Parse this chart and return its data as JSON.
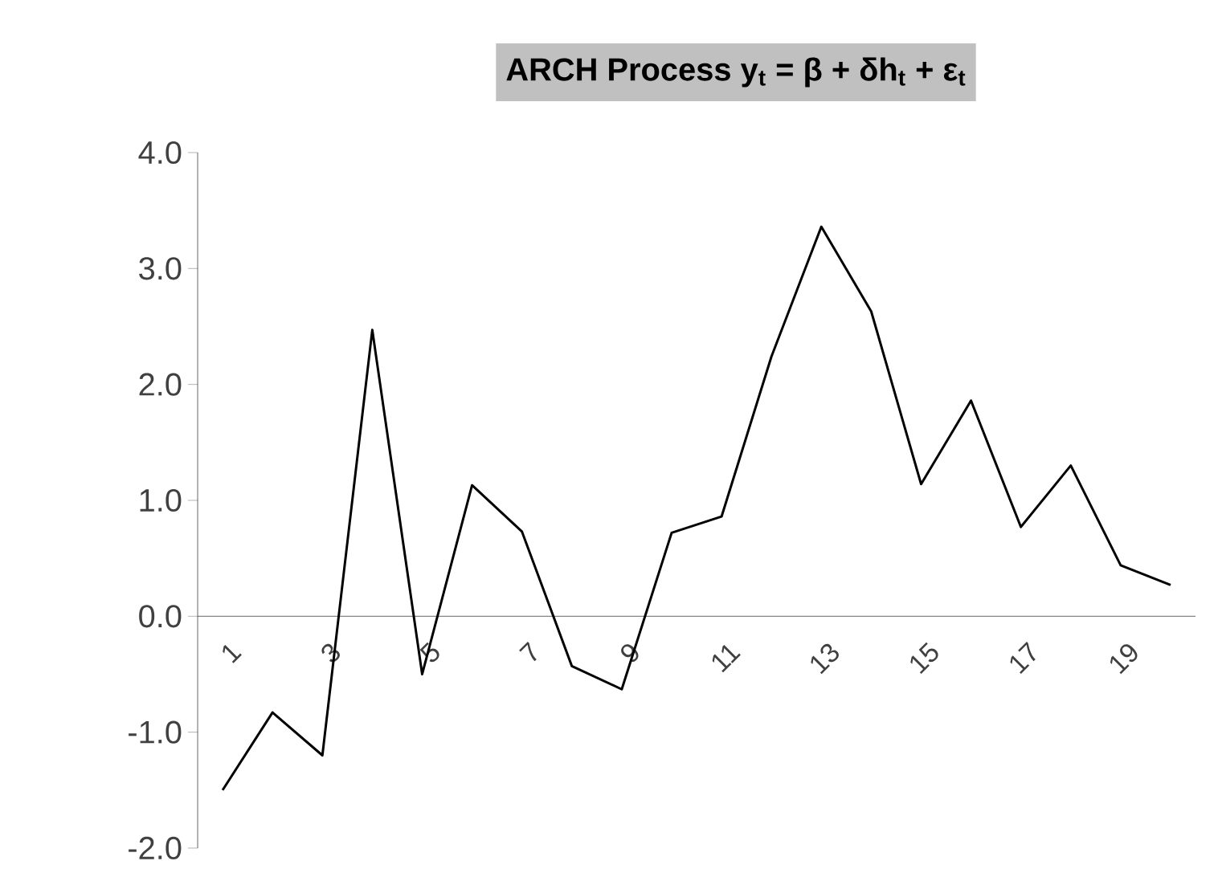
{
  "chart_data": {
    "type": "line",
    "title": "ARCH Process y$_{t}$ = β + δh$_{t}$ + ε$_{t}$",
    "categories": [
      "1",
      null,
      "3",
      null,
      "5",
      null,
      "7",
      null,
      "9",
      null,
      "11",
      null,
      "13",
      null,
      "15",
      null,
      "17",
      null,
      "19",
      null
    ],
    "values": [
      -1.5,
      -0.83,
      -1.2,
      2.47,
      -0.5,
      1.13,
      0.73,
      -0.43,
      -0.63,
      0.72,
      0.86,
      2.24,
      3.36,
      2.63,
      1.14,
      1.86,
      0.77,
      1.3,
      0.44,
      0.27
    ],
    "color": "#000000",
    "ylim": [
      -2,
      4
    ],
    "yticks": [
      {
        "value": -2,
        "label": "-2.0"
      },
      {
        "value": -1,
        "label": "-1.0"
      },
      {
        "value": 0,
        "label": "0.0"
      },
      {
        "value": 1,
        "label": "1.0"
      },
      {
        "value": 2,
        "label": "2.0"
      },
      {
        "value": 3,
        "label": "3.0"
      },
      {
        "value": 4,
        "label": "4.0"
      }
    ]
  }
}
